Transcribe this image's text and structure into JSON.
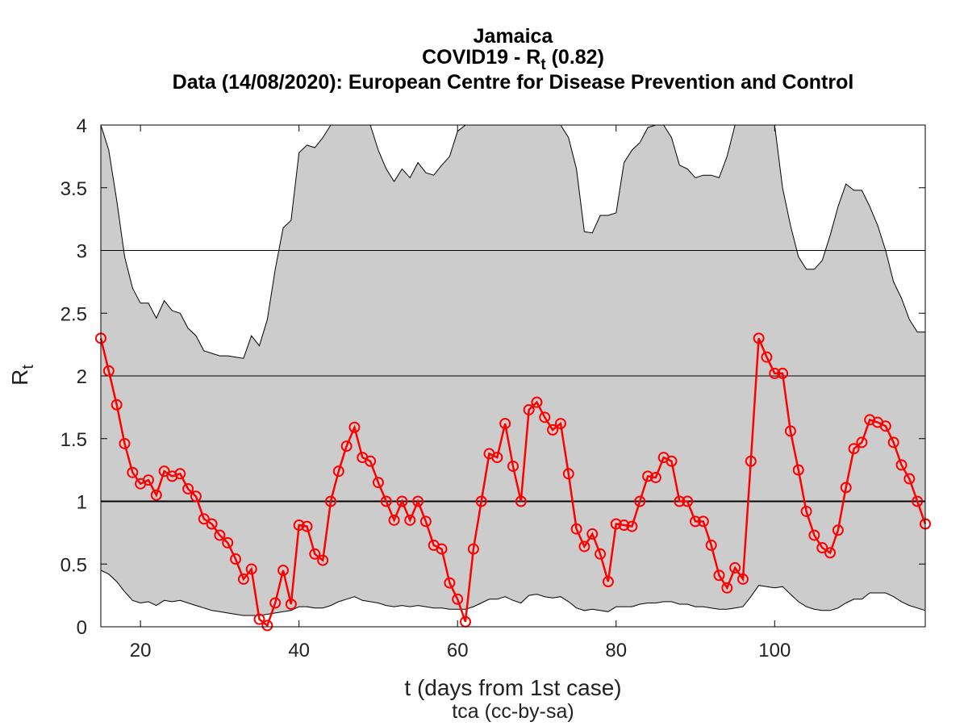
{
  "title": {
    "country": "Jamaica",
    "metric_prefix": "COVID19 - R",
    "metric_sub": "t",
    "metric_suffix": " (0.82)",
    "source": "Data (14/08/2020): European Centre for Disease Prevention and Control"
  },
  "axes": {
    "xlabel": "t (days from 1st case)",
    "ylabel_main": "R",
    "ylabel_sub": "t",
    "credit": "tca (cc-by-sa)"
  },
  "colors": {
    "band": "#cccccc",
    "series": "#ff0000",
    "reference": "#000000"
  },
  "chart_data": {
    "type": "line",
    "xlim": [
      15,
      119
    ],
    "ylim": [
      0,
      4
    ],
    "x_ticks": [
      20,
      40,
      60,
      80,
      100
    ],
    "y_ticks": [
      0,
      0.5,
      1,
      1.5,
      2,
      2.5,
      3,
      3.5,
      4
    ],
    "y_tick_labels": [
      "0",
      "0.5",
      "1",
      "1.5",
      "2",
      "2.5",
      "3",
      "3.5",
      "4"
    ],
    "grid": "horizontal lines at y = 1, 2, 3",
    "reference_line": 1,
    "x": [
      15,
      16,
      17,
      18,
      19,
      20,
      21,
      22,
      23,
      24,
      25,
      26,
      27,
      28,
      29,
      30,
      31,
      32,
      33,
      34,
      35,
      36,
      37,
      38,
      39,
      40,
      41,
      42,
      43,
      44,
      45,
      46,
      47,
      48,
      49,
      50,
      51,
      52,
      53,
      54,
      55,
      56,
      57,
      58,
      59,
      60,
      61,
      62,
      63,
      64,
      65,
      66,
      67,
      68,
      69,
      70,
      71,
      72,
      73,
      74,
      75,
      76,
      77,
      78,
      79,
      80,
      81,
      82,
      83,
      84,
      85,
      86,
      87,
      88,
      89,
      90,
      91,
      92,
      93,
      94,
      95,
      96,
      97,
      98,
      99,
      100,
      101,
      102,
      103,
      104,
      105,
      106,
      107,
      108,
      109,
      110,
      111,
      112,
      113,
      114,
      115,
      116,
      117,
      118,
      119
    ],
    "series": [
      {
        "values": [
          2.3,
          2.04,
          1.77,
          1.46,
          1.23,
          1.14,
          1.17,
          1.05,
          1.24,
          1.2,
          1.22,
          1.1,
          1.04,
          0.86,
          0.82,
          0.73,
          0.67,
          0.54,
          0.38,
          0.46,
          0.06,
          0.01,
          0.19,
          0.45,
          0.18,
          0.81,
          0.8,
          0.58,
          0.53,
          1.0,
          1.24,
          1.44,
          1.59,
          1.35,
          1.32,
          1.15,
          1.0,
          0.85,
          1.0,
          0.85,
          1.0,
          0.84,
          0.65,
          0.62,
          0.35,
          0.22,
          0.04,
          0.62,
          1.0,
          1.38,
          1.35,
          1.62,
          1.28,
          1.0,
          1.73,
          1.79,
          1.67,
          1.57,
          1.62,
          1.22,
          0.78,
          0.64,
          0.74,
          0.58,
          0.36,
          0.82,
          0.81,
          0.8,
          1.0,
          1.2,
          1.19,
          1.35,
          1.32,
          1.0,
          1.0,
          0.84,
          0.84,
          0.65,
          0.41,
          0.31,
          0.47,
          0.38,
          1.32,
          2.3,
          2.15,
          2.02,
          2.02,
          1.56,
          1.25,
          0.92,
          0.73,
          0.63,
          0.59,
          0.77,
          1.11,
          1.42,
          1.47,
          1.65,
          1.63,
          1.6,
          1.47,
          1.29,
          1.18,
          1.0,
          0.82
        ]
      }
    ],
    "band_upper": [
      4.0,
      3.8,
      3.4,
      2.95,
      2.7,
      2.58,
      2.58,
      2.46,
      2.6,
      2.52,
      2.5,
      2.38,
      2.32,
      2.2,
      2.18,
      2.16,
      2.16,
      2.15,
      2.14,
      2.32,
      2.24,
      2.45,
      2.85,
      3.18,
      3.24,
      3.78,
      3.84,
      3.82,
      3.9,
      4.0,
      4.0,
      4.0,
      4.0,
      4.0,
      4.0,
      3.8,
      3.65,
      3.55,
      3.65,
      3.58,
      3.7,
      3.62,
      3.6,
      3.68,
      3.75,
      3.95,
      4.0,
      4.0,
      4.0,
      4.0,
      4.0,
      4.0,
      4.0,
      4.0,
      4.0,
      4.0,
      4.0,
      4.0,
      4.0,
      3.9,
      3.65,
      3.15,
      3.14,
      3.28,
      3.28,
      3.3,
      3.7,
      3.8,
      3.86,
      3.98,
      4.0,
      4.0,
      3.9,
      3.68,
      3.65,
      3.58,
      3.6,
      3.6,
      3.58,
      3.75,
      4.0,
      4.0,
      4.0,
      4.0,
      4.0,
      4.0,
      3.5,
      3.2,
      2.95,
      2.85,
      2.85,
      2.92,
      3.12,
      3.35,
      3.53,
      3.48,
      3.48,
      3.35,
      3.2,
      3.0,
      2.75,
      2.62,
      2.45,
      2.35,
      2.35
    ],
    "band_lower": [
      0.45,
      0.42,
      0.36,
      0.28,
      0.21,
      0.19,
      0.2,
      0.17,
      0.21,
      0.2,
      0.21,
      0.19,
      0.17,
      0.15,
      0.13,
      0.12,
      0.11,
      0.1,
      0.09,
      0.09,
      0.09,
      0.1,
      0.11,
      0.12,
      0.13,
      0.16,
      0.16,
      0.15,
      0.15,
      0.17,
      0.2,
      0.22,
      0.24,
      0.21,
      0.2,
      0.19,
      0.17,
      0.16,
      0.17,
      0.16,
      0.17,
      0.16,
      0.15,
      0.15,
      0.14,
      0.14,
      0.14,
      0.16,
      0.19,
      0.22,
      0.22,
      0.24,
      0.21,
      0.19,
      0.25,
      0.26,
      0.24,
      0.23,
      0.24,
      0.2,
      0.15,
      0.13,
      0.14,
      0.13,
      0.12,
      0.16,
      0.16,
      0.16,
      0.18,
      0.19,
      0.19,
      0.2,
      0.2,
      0.18,
      0.18,
      0.16,
      0.16,
      0.15,
      0.14,
      0.14,
      0.15,
      0.16,
      0.24,
      0.33,
      0.32,
      0.31,
      0.32,
      0.26,
      0.2,
      0.16,
      0.14,
      0.13,
      0.13,
      0.15,
      0.19,
      0.22,
      0.22,
      0.27,
      0.27,
      0.27,
      0.24,
      0.2,
      0.17,
      0.15,
      0.13
    ]
  }
}
